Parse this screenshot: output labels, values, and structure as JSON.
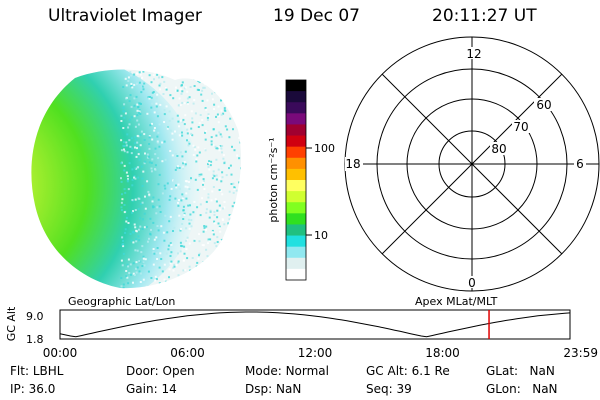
{
  "header": {
    "title": "Ultraviolet Imager",
    "date": "19 Dec 07",
    "time": "20:11:27 UT"
  },
  "colorbar": {
    "unit_label": "photon cm⁻²s⁻¹",
    "ticks": [
      "100",
      "10"
    ],
    "colors": [
      "#000000",
      "#1a0a3a",
      "#3a0a5a",
      "#7a0a7a",
      "#a00030",
      "#d00010",
      "#ff4000",
      "#ff9000",
      "#ffc000",
      "#ffff60",
      "#d0ff30",
      "#80ff20",
      "#30e020",
      "#20c080",
      "#20e0e0",
      "#90e8f0",
      "#e0f0f0",
      "#ffffff"
    ]
  },
  "polar": {
    "mlt_labels": {
      "top": "12",
      "left": "18",
      "right": "6",
      "bottom": "0"
    },
    "lat_labels": [
      "60",
      "70",
      "80"
    ]
  },
  "timeline": {
    "left_title": "Geographic Lat/Lon",
    "right_title": "Apex MLat/MLT",
    "y_axis_label": "GC Alt",
    "y_ticks": [
      "9.0",
      "1.8"
    ],
    "x_ticks": [
      "00:00",
      "06:00",
      "12:00",
      "18:00",
      "23:59"
    ],
    "current_time_hours": 20.19
  },
  "info": {
    "col1": [
      {
        "label": "Flt:",
        "value": "LBHL"
      },
      {
        "label": "IP:",
        "value": "36.0"
      }
    ],
    "col2": [
      {
        "label": "Door:",
        "value": "Open"
      },
      {
        "label": "Gain:",
        "value": "14"
      }
    ],
    "col3": [
      {
        "label": "Mode:",
        "value": "Normal"
      },
      {
        "label": "Dsp:",
        "value": "NaN"
      }
    ],
    "col4": [
      {
        "label": "GC Alt:",
        "value": "6.1 Re"
      },
      {
        "label": "Seq:",
        "value": "39"
      }
    ],
    "col5": [
      {
        "label": "GLat:",
        "value": "NaN"
      },
      {
        "label": "GLon:",
        "value": "NaN"
      }
    ]
  },
  "colors": {
    "marker": "#e00000",
    "aurora_core": "#e8ff40",
    "aurora_mid": "#50e020",
    "aurora_edge": "#30d0d0"
  }
}
